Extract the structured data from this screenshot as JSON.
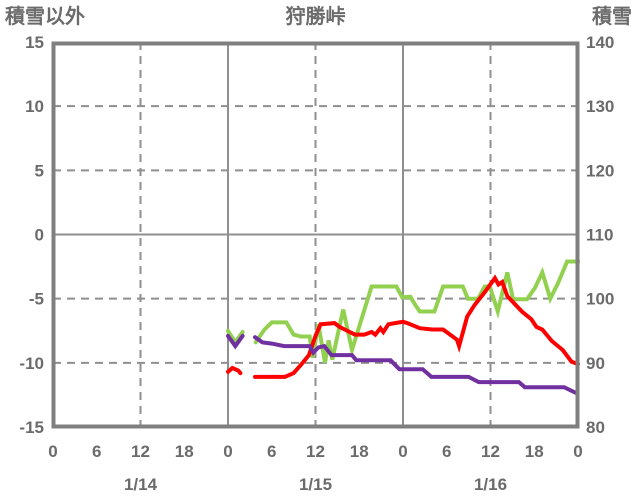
{
  "header": {
    "left_label": "積雪以外",
    "title": "狩勝峠",
    "right_label": "積雪"
  },
  "colors": {
    "background": "#ffffff",
    "border": "#7f7f7f",
    "grid": "#8f8f8f",
    "text": "#6b6b6b",
    "green_line": "#92d050",
    "red_line": "#ff0000",
    "purple_line": "#7030a0"
  },
  "chart_data": {
    "type": "line",
    "title": "狩勝峠",
    "left_axis": {
      "label": "積雪以外",
      "min": -15,
      "max": 15,
      "ticks": [
        15,
        10,
        5,
        0,
        -5,
        -10,
        -15
      ]
    },
    "right_axis": {
      "label": "積雪",
      "min": 80,
      "max": 140,
      "ticks": [
        140,
        130,
        120,
        110,
        100,
        90,
        80
      ]
    },
    "x_axis": {
      "total_hours": 72,
      "hour_label_step": 6,
      "hour_labels": [
        "0",
        "6",
        "12",
        "18",
        "0",
        "6",
        "12",
        "18",
        "0",
        "6",
        "12",
        "18",
        "0"
      ],
      "day_labels": [
        "1/14",
        "1/15",
        "1/16"
      ],
      "day_label_center_hours": [
        12,
        36,
        60
      ],
      "grid_dashed_hours": [
        12,
        36,
        60
      ],
      "grid_solid_hours": [
        24,
        48
      ]
    },
    "grid": {
      "horizontal_dashed_values": [
        10,
        5,
        -5,
        -10
      ],
      "horizontal_solid_values": [
        0
      ]
    },
    "series": [
      {
        "name": "green-line-snow-depth",
        "axis": "right",
        "color": "#92d050",
        "segments": [
          [
            [
              24,
              95
            ],
            [
              25,
              93.2
            ],
            [
              26,
              94.8
            ]
          ],
          [
            [
              27.8,
              93.2
            ],
            [
              29,
              95.2
            ],
            [
              30,
              96.3
            ],
            [
              32,
              96.3
            ],
            [
              33,
              94.4
            ],
            [
              34,
              94.1
            ],
            [
              35.2,
              94.1
            ],
            [
              35.6,
              90.8
            ],
            [
              36.4,
              96
            ],
            [
              37.3,
              90
            ],
            [
              37.8,
              93.5
            ],
            [
              38.3,
              90.5
            ],
            [
              39.8,
              98.3
            ],
            [
              41,
              92
            ],
            [
              43.7,
              101.9
            ],
            [
              47.1,
              101.9
            ],
            [
              47.9,
              100.2
            ],
            [
              49,
              100.3
            ],
            [
              49.7,
              99
            ],
            [
              50.3,
              98
            ],
            [
              52.3,
              98
            ],
            [
              53.5,
              101.9
            ],
            [
              56.2,
              101.9
            ],
            [
              56.9,
              100
            ],
            [
              58.3,
              100
            ],
            [
              59.2,
              101.9
            ],
            [
              59.9,
              101.9
            ],
            [
              61,
              98
            ],
            [
              62.3,
              104.1
            ],
            [
              63.1,
              99.9
            ],
            [
              65,
              99.9
            ],
            [
              66.1,
              101.7
            ],
            [
              67.1,
              104.1
            ],
            [
              68.2,
              100
            ],
            [
              69.3,
              102.5
            ],
            [
              70.5,
              105.8
            ],
            [
              72,
              105.8
            ]
          ]
        ]
      },
      {
        "name": "red-line-temperature",
        "axis": "left",
        "color": "#ff0000",
        "segments": [
          [
            [
              24,
              -10.7
            ],
            [
              24.6,
              -10.4
            ],
            [
              25.4,
              -10.6
            ],
            [
              25.7,
              -10.8
            ]
          ],
          [
            [
              27.7,
              -11.1
            ],
            [
              31.8,
              -11.1
            ],
            [
              33,
              -10.8
            ],
            [
              34.1,
              -10.1
            ],
            [
              35.1,
              -9.4
            ],
            [
              36,
              -7.9
            ],
            [
              36.7,
              -7
            ],
            [
              38.6,
              -6.9
            ],
            [
              39.3,
              -7.2
            ],
            [
              40,
              -7.4
            ],
            [
              41.4,
              -7.8
            ],
            [
              42.7,
              -7.8
            ],
            [
              43.7,
              -7.6
            ],
            [
              44.2,
              -7.8
            ],
            [
              44.9,
              -7.3
            ],
            [
              45.3,
              -7.6
            ],
            [
              46,
              -7
            ],
            [
              46.9,
              -6.9
            ],
            [
              48,
              -6.8
            ],
            [
              48.6,
              -6.9
            ],
            [
              50.3,
              -7.3
            ],
            [
              52,
              -7.4
            ],
            [
              53.5,
              -7.4
            ],
            [
              55.4,
              -8.2
            ],
            [
              55.7,
              -8.7
            ],
            [
              56.8,
              -6.4
            ],
            [
              57.8,
              -5.5
            ],
            [
              59.2,
              -4.5
            ],
            [
              60.6,
              -3.4
            ],
            [
              61.1,
              -3.9
            ],
            [
              61.6,
              -3.7
            ],
            [
              62.3,
              -4.8
            ],
            [
              64.3,
              -6
            ],
            [
              65.6,
              -6.6
            ],
            [
              66.3,
              -7.2
            ],
            [
              67.1,
              -7.4
            ],
            [
              68.4,
              -8.3
            ],
            [
              69.9,
              -9
            ],
            [
              71.1,
              -9.9
            ],
            [
              72,
              -10.1
            ]
          ]
        ]
      },
      {
        "name": "purple-line-temperature",
        "axis": "left",
        "color": "#7030a0",
        "segments": [
          [
            [
              24,
              -7.9
            ],
            [
              25,
              -8.7
            ],
            [
              26,
              -7.9
            ]
          ],
          [
            [
              27.7,
              -8
            ],
            [
              28.7,
              -8.4
            ],
            [
              30,
              -8.5
            ],
            [
              31.7,
              -8.7
            ],
            [
              35.2,
              -8.7
            ],
            [
              35.7,
              -9.2
            ],
            [
              36.4,
              -8.8
            ],
            [
              37.2,
              -8.7
            ],
            [
              38.2,
              -9.4
            ],
            [
              41,
              -9.4
            ],
            [
              41.6,
              -9.8
            ],
            [
              46.3,
              -9.8
            ],
            [
              47.5,
              -10.5
            ],
            [
              50.7,
              -10.5
            ],
            [
              51.9,
              -11.1
            ],
            [
              57,
              -11.1
            ],
            [
              58.4,
              -11.5
            ],
            [
              63.9,
              -11.5
            ],
            [
              64.7,
              -11.9
            ],
            [
              70.1,
              -11.9
            ],
            [
              71.9,
              -12.4
            ]
          ]
        ]
      }
    ]
  }
}
